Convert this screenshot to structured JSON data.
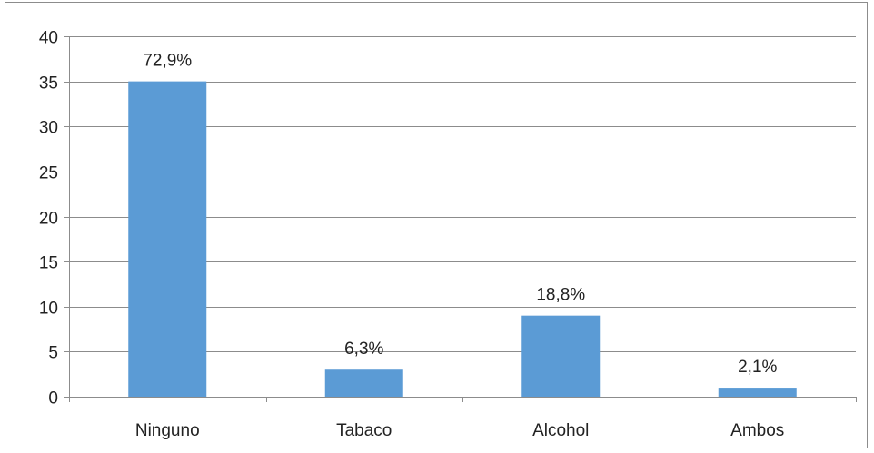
{
  "chart_data": {
    "type": "bar",
    "title": "",
    "xlabel": "",
    "ylabel": "",
    "categories": [
      "Ninguno",
      "Tabaco",
      "Alcohol",
      "Ambos"
    ],
    "values": [
      35,
      3,
      9,
      1
    ],
    "data_labels": [
      "72,9%",
      "6,3%",
      "18,8%",
      "2,1%"
    ],
    "ylim": [
      0,
      40
    ],
    "yticks": [
      "0",
      "5",
      "10",
      "15",
      "20",
      "25",
      "30",
      "35",
      "40"
    ],
    "grid": true,
    "legend": "none",
    "bar_color": "#5b9bd5",
    "grid_color": "#8c8c8c"
  }
}
